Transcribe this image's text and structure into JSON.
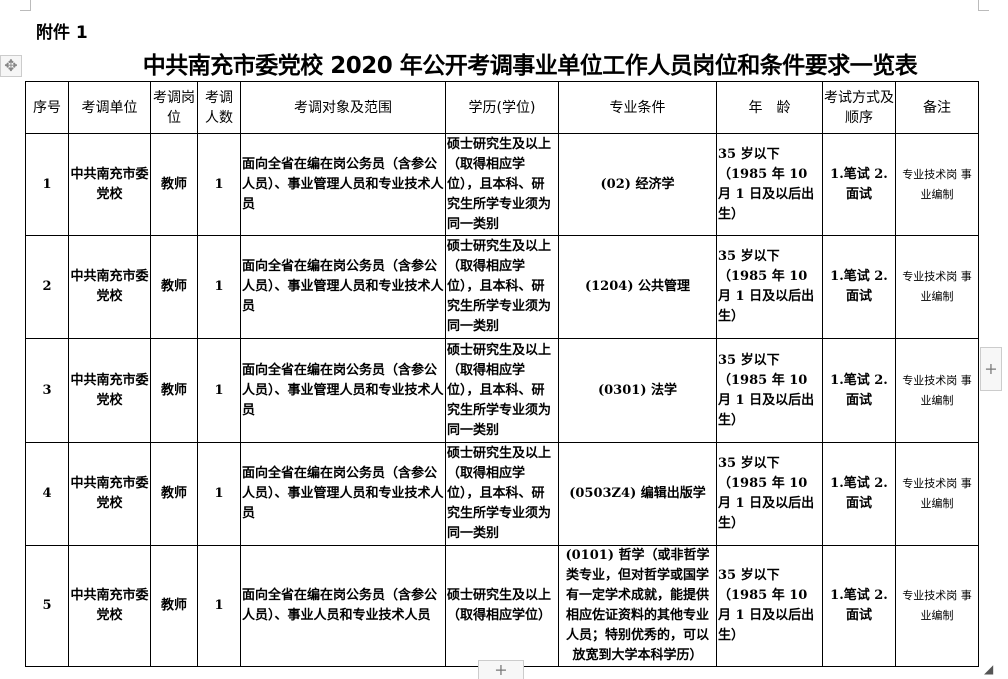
{
  "attachment_label": "附件 1",
  "title": "中共南充市委党校 2020 年公开考调事业单位工作人员岗位和条件要求一览表",
  "table": {
    "headers": [
      "序号",
      "考调单位",
      "考调岗位",
      "考调人数",
      "考调对象及范围",
      "学历(学位)",
      "专业条件",
      "年　龄",
      "考试方式及顺序",
      "备注"
    ],
    "rows": [
      {
        "no": "1",
        "unit": "中共南充市委党校",
        "post": "教师",
        "count": "1",
        "scope": "面向全省在编在岗公务员（含参公人员）、事业管理人员和专业技术人员",
        "edu": "硕士研究生及以上（取得相应学位），且本科、研究生所学专业须为同一类别",
        "major": "(02) 经济学",
        "age": "35 岁以下（1985 年 10 月 1 日及以后出生）",
        "exam": "1.笔试 2.面试",
        "note": "专业技术岗 事业编制"
      },
      {
        "no": "2",
        "unit": "中共南充市委党校",
        "post": "教师",
        "count": "1",
        "scope": "面向全省在编在岗公务员（含参公人员）、事业管理人员和专业技术人员",
        "edu": "硕士研究生及以上（取得相应学位），且本科、研究生所学专业须为同一类别",
        "major": "(1204) 公共管理",
        "age": "35 岁以下（1985 年 10 月 1 日及以后出生）",
        "exam": "1.笔试 2.面试",
        "note": "专业技术岗 事业编制"
      },
      {
        "no": "3",
        "unit": "中共南充市委党校",
        "post": "教师",
        "count": "1",
        "scope": "面向全省在编在岗公务员（含参公人员）、事业管理人员和专业技术人员",
        "edu": "硕士研究生及以上（取得相应学位），且本科、研究生所学专业须为同一类别",
        "major": "(0301) 法学",
        "age": "35 岁以下（1985 年 10 月 1 日及以后出生）",
        "exam": "1.笔试 2.面试",
        "note": "专业技术岗 事业编制"
      },
      {
        "no": "4",
        "unit": "中共南充市委党校",
        "post": "教师",
        "count": "1",
        "scope": "面向全省在编在岗公务员（含参公人员）、事业管理人员和专业技术人员",
        "edu": "硕士研究生及以上（取得相应学位），且本科、研究生所学专业须为同一类别",
        "major": "(0503Z4) 编辑出版学",
        "age": "35 岁以下（1985 年 10 月 1 日及以后出生）",
        "exam": "1.笔试 2.面试",
        "note": "专业技术岗 事业编制"
      },
      {
        "no": "5",
        "unit": "中共南充市委党校",
        "post": "教师",
        "count": "1",
        "scope": "面向全省在编在岗公务员（含参公人员）、事业人员和专业技术人员",
        "edu": "硕士研究生及以上（取得相应学位）",
        "major": "(0101) 哲学（或非哲学类专业，但对哲学或国学有一定学术成就，能提供相应佐证资料的其他专业人员；特别优秀的，可以放宽到大学本科学历）",
        "age": "35 岁以下（1985 年 10 月 1 日及以后出生）",
        "exam": "1.笔试 2.面试",
        "note": "专业技术岗 事业编制"
      }
    ]
  },
  "ui": {
    "move_icon": "move-handle-icon",
    "add_icon": "plus-icon",
    "resize_icon": "resize-handle-icon"
  }
}
